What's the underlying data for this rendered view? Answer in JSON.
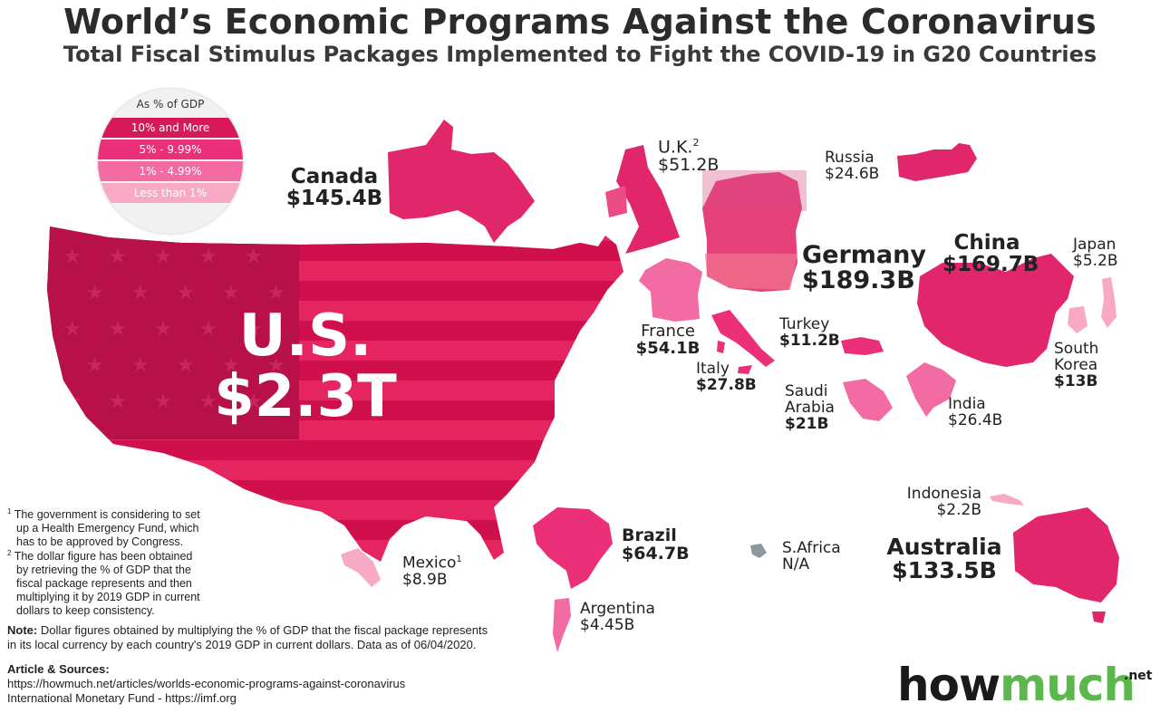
{
  "title": "World’s Economic Programs Against the Coronavirus",
  "subtitle": "Total Fiscal Stimulus Packages Implemented to Fight the COVID-19 in G20 Countries",
  "legend": {
    "header": "As % of GDP",
    "items": [
      {
        "label": "10% and More",
        "color": "#d7185a"
      },
      {
        "label": "5% - 9.99%",
        "color": "#ec2f79"
      },
      {
        "label": "1% - 4.99%",
        "color": "#f26ba2"
      },
      {
        "label": "Less than 1%",
        "color": "#f8a9c6"
      }
    ]
  },
  "countries": {
    "us": {
      "name": "U.S.",
      "value": "$2.3T"
    },
    "canada": {
      "name": "Canada",
      "value": "$145.4B"
    },
    "uk": {
      "name": "U.K.",
      "sup": "2",
      "value": "$51.2B"
    },
    "russia": {
      "name": "Russia",
      "value": "$24.6B"
    },
    "germany": {
      "name": "Germany",
      "value": "$189.3B"
    },
    "china": {
      "name": "China",
      "value": "$169.7B"
    },
    "japan": {
      "name": "Japan",
      "value": "$5.2B"
    },
    "france": {
      "name": "France",
      "value": "$54.1B"
    },
    "turkey": {
      "name": "Turkey",
      "value": "$11.2B"
    },
    "italy": {
      "name": "Italy",
      "value": "$27.8B"
    },
    "saudi": {
      "name1": "Saudi",
      "name2": "Arabia",
      "value": "$21B"
    },
    "southkorea": {
      "name1": "South",
      "name2": "Korea",
      "value": "$13B"
    },
    "india": {
      "name": "India",
      "value": "$26.4B"
    },
    "indonesia": {
      "name": "Indonesia",
      "value": "$2.2B"
    },
    "australia": {
      "name": "Australia",
      "value": "$133.5B"
    },
    "brazil": {
      "name": "Brazil",
      "value": "$64.7B"
    },
    "safrica": {
      "name": "S.Africa",
      "value": "N/A"
    },
    "mexico": {
      "name": "Mexico",
      "sup": "1",
      "value": "$8.9B"
    },
    "argentina": {
      "name": "Argentina",
      "value": "$4.45B"
    }
  },
  "footnotes": {
    "f1_mark": "1",
    "f1": [
      "The government is considering to set",
      "up a Health Emergency Fund, which",
      "has to be approved by Congress."
    ],
    "f2_mark": "2",
    "f2": [
      "The dollar figure has been obtained",
      "by retrieving the % of GDP that the",
      "fiscal package represents and then",
      "multiplying it by 2019 GDP in current",
      "dollars to keep consistency."
    ]
  },
  "note": {
    "label": "Note:",
    "line1": " Dollar figures obtained by multiplying the % of GDP that the fiscal package represents",
    "line2": "in its local currency by each country's 2019 GDP in current dollars. Data as of 06/04/2020."
  },
  "sources": {
    "label": "Article & Sources:",
    "line1": "https://howmuch.net/articles/worlds-economic-programs-against-coronavirus",
    "line2": "International Monetary Fund - https://imf.org"
  },
  "brand": {
    "part1": "how",
    "part2": "much",
    "suffix": ".net",
    "accent": "#5cb84c"
  }
}
